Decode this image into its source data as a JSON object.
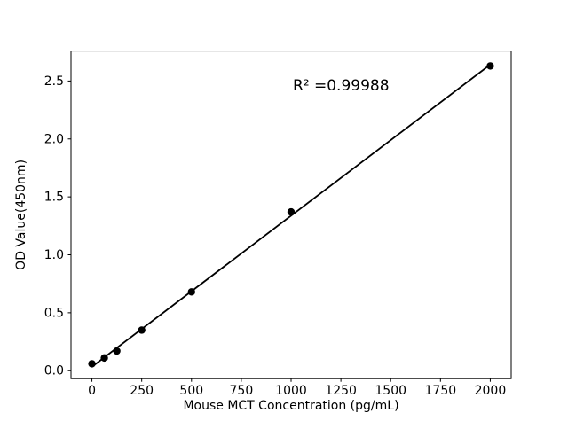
{
  "chart_data": {
    "type": "scatter",
    "title": "",
    "xlabel": "Mouse MCT Concentration (pg/mL)",
    "ylabel": "OD Value(450nm)",
    "annotation": "R² =0.99988",
    "x": [
      0,
      62.5,
      125,
      250,
      500,
      1000,
      2000
    ],
    "y": [
      0.06,
      0.11,
      0.17,
      0.35,
      0.68,
      1.37,
      2.63
    ],
    "xlim": [
      -105,
      2105
    ],
    "ylim": [
      -0.0685,
      2.7585
    ],
    "xticks": [
      0,
      250,
      500,
      750,
      1000,
      1250,
      1500,
      1750,
      2000
    ],
    "yticks": [
      0.0,
      0.5,
      1.0,
      1.5,
      2.0,
      2.5
    ],
    "grid": false,
    "legend": "none",
    "fit": "linear-regression-line",
    "line_color": "#000000",
    "marker_color": "#000000",
    "background_color": "#ffffff",
    "annotation_position": {
      "x_frac": 0.504,
      "y_frac": 0.88
    }
  }
}
